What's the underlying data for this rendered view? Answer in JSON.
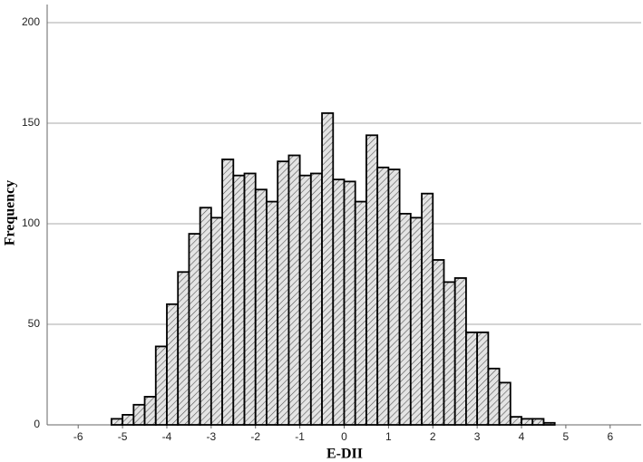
{
  "chart_data": {
    "type": "histogram",
    "xlabel": "E-DII",
    "ylabel": "Frequency",
    "bins": [
      -5.25,
      -5.0,
      -4.75,
      -4.5,
      -4.25,
      -4.0,
      -3.75,
      -3.5,
      -3.25,
      -3.0,
      -2.75,
      -2.5,
      -2.25,
      -2.0,
      -1.75,
      -1.5,
      -1.25,
      -1.0,
      -0.75,
      -0.5,
      -0.25,
      0.0,
      0.25,
      0.5,
      0.75,
      1.0,
      1.25,
      1.5,
      1.75,
      2.0,
      2.25,
      2.5,
      2.75,
      3.0,
      3.25,
      3.5,
      3.75,
      4.0,
      4.25,
      4.5,
      4.75
    ],
    "counts": [
      3,
      5,
      10,
      14,
      39,
      60,
      76,
      95,
      108,
      103,
      132,
      124,
      125,
      117,
      111,
      131,
      134,
      124,
      125,
      155,
      122,
      121,
      111,
      144,
      128,
      127,
      105,
      103,
      115,
      82,
      71,
      73,
      46,
      46,
      28,
      21,
      4,
      3,
      3,
      1
    ],
    "xlim": [
      -6.7,
      6.7
    ],
    "ylim": [
      0,
      209
    ],
    "xticks": [
      -6,
      -5,
      -4,
      -3,
      -2,
      -1,
      0,
      1,
      2,
      3,
      4,
      5,
      6
    ],
    "yticks": [
      0,
      50,
      100,
      150,
      200
    ],
    "grid": true,
    "color": "#d9d9d9"
  }
}
